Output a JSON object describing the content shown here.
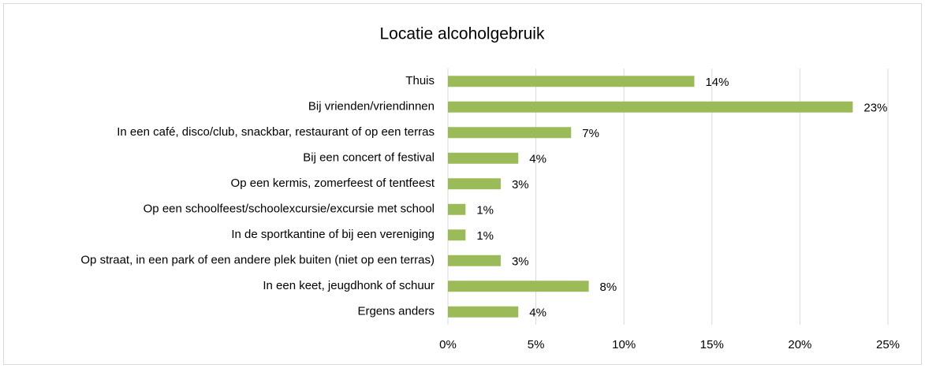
{
  "chart_data": {
    "type": "bar",
    "orientation": "horizontal",
    "title": "Locatie alcoholgebruik",
    "categories": [
      "Thuis",
      "Bij vrienden/vriendinnen",
      "In een café, disco/club, snackbar, restaurant of op een terras",
      "Bij een concert of festival",
      "Op een kermis, zomerfeest of tentfeest",
      "Op een schoolfeest/schoolexcursie/excursie met school",
      "In de sportkantine of bij een vereniging",
      "Op straat, in een park of een andere plek buiten (niet op een terras)",
      "In een keet, jeugdhonk of schuur",
      "Ergens anders"
    ],
    "values": [
      14,
      23,
      7,
      4,
      3,
      1,
      1,
      3,
      8,
      4
    ],
    "value_labels": [
      "14%",
      "23%",
      "7%",
      "4%",
      "3%",
      "1%",
      "1%",
      "3%",
      "8%",
      "4%"
    ],
    "color": "#9bbb59",
    "xlim": [
      0,
      25
    ],
    "xticks": [
      {
        "value": 0,
        "label": "0%"
      },
      {
        "value": 5,
        "label": "5%"
      },
      {
        "value": 10,
        "label": "10%"
      },
      {
        "value": 15,
        "label": "15%"
      },
      {
        "value": 20,
        "label": "20%"
      },
      {
        "value": 25,
        "label": "25%"
      }
    ],
    "grid": true
  }
}
